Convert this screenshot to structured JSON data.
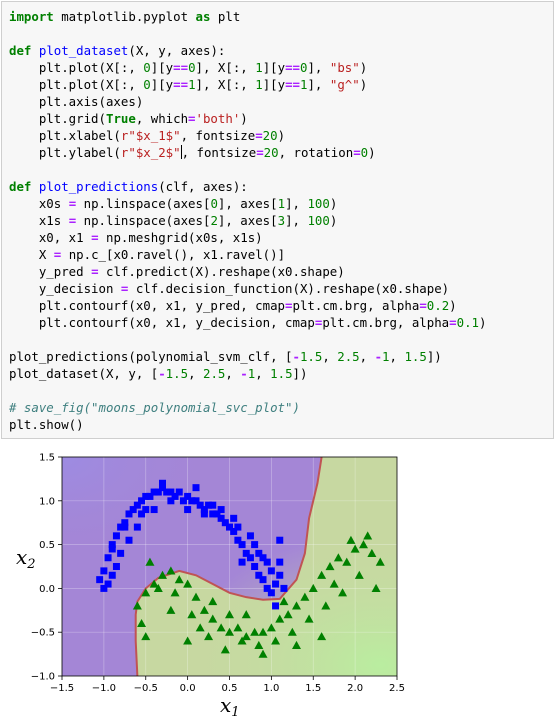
{
  "code": {
    "lines": [
      [
        [
          "kw",
          "import"
        ],
        [
          "t",
          " matplotlib.pyplot "
        ],
        [
          "kw",
          "as"
        ],
        [
          "t",
          " plt"
        ]
      ],
      [],
      [
        [
          "kw",
          "def"
        ],
        [
          "t",
          " "
        ],
        [
          "fn",
          "plot_dataset"
        ],
        [
          "t",
          "(X, y, axes):"
        ]
      ],
      [
        [
          "t",
          "    plt.plot(X[:, "
        ],
        [
          "num",
          "0"
        ],
        [
          "t",
          "][y"
        ],
        [
          "op",
          "=="
        ],
        [
          "num",
          "0"
        ],
        [
          "t",
          "], X[:, "
        ],
        [
          "num",
          "1"
        ],
        [
          "t",
          "][y"
        ],
        [
          "op",
          "=="
        ],
        [
          "num",
          "0"
        ],
        [
          "t",
          "], "
        ],
        [
          "str",
          "\"bs\""
        ],
        [
          "t",
          ")"
        ]
      ],
      [
        [
          "t",
          "    plt.plot(X[:, "
        ],
        [
          "num",
          "0"
        ],
        [
          "t",
          "][y"
        ],
        [
          "op",
          "=="
        ],
        [
          "num",
          "1"
        ],
        [
          "t",
          "], X[:, "
        ],
        [
          "num",
          "1"
        ],
        [
          "t",
          "][y"
        ],
        [
          "op",
          "=="
        ],
        [
          "num",
          "1"
        ],
        [
          "t",
          "], "
        ],
        [
          "str",
          "\"g^\""
        ],
        [
          "t",
          ")"
        ]
      ],
      [
        [
          "t",
          "    plt.axis(axes)"
        ]
      ],
      [
        [
          "t",
          "    plt.grid("
        ],
        [
          "kw",
          "True"
        ],
        [
          "t",
          ", which"
        ],
        [
          "op",
          "="
        ],
        [
          "str",
          "'both'"
        ],
        [
          "t",
          ")"
        ]
      ],
      [
        [
          "t",
          "    plt.xlabel("
        ],
        [
          "str",
          "r\"$x_1$\""
        ],
        [
          "t",
          ", fontsize"
        ],
        [
          "op",
          "="
        ],
        [
          "num",
          "20"
        ],
        [
          "t",
          ")"
        ]
      ],
      [
        [
          "t",
          "    plt.ylabel("
        ],
        [
          "str",
          "r\"$x_2$\""
        ],
        [
          "cur",
          ""
        ],
        [
          "t",
          ", fontsize"
        ],
        [
          "op",
          "="
        ],
        [
          "num",
          "20"
        ],
        [
          "t",
          ", rotation"
        ],
        [
          "op",
          "="
        ],
        [
          "num",
          "0"
        ],
        [
          "t",
          ")"
        ]
      ],
      [],
      [
        [
          "kw",
          "def"
        ],
        [
          "t",
          " "
        ],
        [
          "fn",
          "plot_predictions"
        ],
        [
          "t",
          "(clf, axes):"
        ]
      ],
      [
        [
          "t",
          "    x0s "
        ],
        [
          "op",
          "="
        ],
        [
          "t",
          " np.linspace(axes["
        ],
        [
          "num",
          "0"
        ],
        [
          "t",
          "], axes["
        ],
        [
          "num",
          "1"
        ],
        [
          "t",
          "], "
        ],
        [
          "num",
          "100"
        ],
        [
          "t",
          ")"
        ]
      ],
      [
        [
          "t",
          "    x1s "
        ],
        [
          "op",
          "="
        ],
        [
          "t",
          " np.linspace(axes["
        ],
        [
          "num",
          "2"
        ],
        [
          "t",
          "], axes["
        ],
        [
          "num",
          "3"
        ],
        [
          "t",
          "], "
        ],
        [
          "num",
          "100"
        ],
        [
          "t",
          ")"
        ]
      ],
      [
        [
          "t",
          "    x0, x1 "
        ],
        [
          "op",
          "="
        ],
        [
          "t",
          " np.meshgrid(x0s, x1s)"
        ]
      ],
      [
        [
          "t",
          "    X "
        ],
        [
          "op",
          "="
        ],
        [
          "t",
          " np.c_[x0.ravel(), x1.ravel()]"
        ]
      ],
      [
        [
          "t",
          "    y_pred "
        ],
        [
          "op",
          "="
        ],
        [
          "t",
          " clf.predict(X).reshape(x0.shape)"
        ]
      ],
      [
        [
          "t",
          "    y_decision "
        ],
        [
          "op",
          "="
        ],
        [
          "t",
          " clf.decision_function(X).reshape(x0.shape)"
        ]
      ],
      [
        [
          "t",
          "    plt.contourf(x0, x1, y_pred, cmap"
        ],
        [
          "op",
          "="
        ],
        [
          "t",
          "plt.cm.brg, alpha"
        ],
        [
          "op",
          "="
        ],
        [
          "num",
          "0.2"
        ],
        [
          "t",
          ")"
        ]
      ],
      [
        [
          "t",
          "    plt.contourf(x0, x1, y_decision, cmap"
        ],
        [
          "op",
          "="
        ],
        [
          "t",
          "plt.cm.brg, alpha"
        ],
        [
          "op",
          "="
        ],
        [
          "num",
          "0.1"
        ],
        [
          "t",
          ")"
        ]
      ],
      [],
      [
        [
          "t",
          "plot_predictions(polynomial_svm_clf, ["
        ],
        [
          "op",
          "-"
        ],
        [
          "num",
          "1.5"
        ],
        [
          "t",
          ", "
        ],
        [
          "num",
          "2.5"
        ],
        [
          "t",
          ", "
        ],
        [
          "op",
          "-"
        ],
        [
          "num",
          "1"
        ],
        [
          "t",
          ", "
        ],
        [
          "num",
          "1.5"
        ],
        [
          "t",
          "])"
        ]
      ],
      [
        [
          "t",
          "plot_dataset(X, y, ["
        ],
        [
          "op",
          "-"
        ],
        [
          "num",
          "1.5"
        ],
        [
          "t",
          ", "
        ],
        [
          "num",
          "2.5"
        ],
        [
          "t",
          ", "
        ],
        [
          "op",
          "-"
        ],
        [
          "num",
          "1"
        ],
        [
          "t",
          ", "
        ],
        [
          "num",
          "1.5"
        ],
        [
          "t",
          "])"
        ]
      ],
      [],
      [
        [
          "cm",
          "# save_fig(\"moons_polynomial_svc_plot\")"
        ]
      ],
      [
        [
          "t",
          "plt.show()"
        ]
      ]
    ]
  },
  "plot": {
    "x_ticks": [
      "−1.5",
      "−1.0",
      "−0.5",
      "0.0",
      "0.5",
      "1.0",
      "1.5",
      "2.0",
      "2.5"
    ],
    "y_ticks": [
      "1.5",
      "1.0",
      "0.5",
      "0.0",
      "−0.5",
      "−1.0"
    ],
    "xlabel": "x",
    "xlabel_sub": "1",
    "ylabel": "x",
    "ylabel_sub": "2"
  },
  "chart_data": {
    "type": "scatter",
    "xlim": [
      -1.5,
      2.5
    ],
    "ylim": [
      -1.0,
      1.5
    ],
    "grid": true,
    "x_ticks": [
      -1.5,
      -1.0,
      -0.5,
      0.0,
      0.5,
      1.0,
      1.5,
      2.0,
      2.5
    ],
    "y_ticks": [
      -1.0,
      -0.5,
      0.0,
      0.5,
      1.0,
      1.5
    ],
    "colors": {
      "class0": "#0000ff",
      "class1": "#008000",
      "region0": "#a486d6",
      "region1": "#c7d8a1",
      "boundary": "#c05454"
    },
    "series": [
      {
        "marker": "bs",
        "color": "#0000ff",
        "x": [
          -1.0,
          -0.95,
          -0.9,
          -0.85,
          -0.8,
          -0.75,
          -0.7,
          -0.65,
          -0.6,
          -0.55,
          -0.5,
          -0.45,
          -0.4,
          -0.35,
          -0.3,
          -0.25,
          -0.2,
          -0.15,
          -0.1,
          -0.05,
          0.0,
          0.05,
          0.1,
          0.15,
          0.2,
          0.25,
          0.3,
          0.35,
          0.4,
          0.45,
          0.5,
          0.55,
          0.6,
          0.65,
          0.7,
          0.75,
          0.8,
          0.85,
          0.9,
          0.95,
          1.0,
          1.05,
          1.1,
          1.15,
          -0.95,
          -0.9,
          -0.8,
          -0.7,
          -0.6,
          -0.5,
          -0.4,
          -0.2,
          0.0,
          0.2,
          0.4,
          0.6,
          0.8,
          0.9,
          1.0,
          1.1,
          -1.05,
          -0.9,
          -0.75,
          -0.55,
          -0.3,
          0.1,
          0.3,
          0.55,
          0.75,
          0.95,
          1.05,
          -1.0,
          -0.85,
          0.65,
          0.85,
          1.1
        ],
        "y": [
          0.2,
          0.35,
          0.45,
          0.6,
          0.7,
          0.75,
          0.85,
          0.9,
          0.95,
          1.0,
          1.05,
          1.05,
          1.1,
          1.1,
          1.15,
          1.1,
          1.1,
          1.05,
          1.1,
          1.0,
          1.05,
          1.0,
          1.0,
          0.95,
          0.9,
          0.95,
          0.85,
          0.85,
          0.8,
          0.75,
          0.7,
          0.65,
          0.55,
          0.5,
          0.4,
          0.35,
          0.25,
          0.15,
          0.1,
          0.0,
          -0.05,
          0.05,
          0.15,
          0.0,
          0.05,
          0.15,
          0.4,
          0.55,
          0.7,
          0.9,
          0.9,
          1.0,
          0.9,
          0.85,
          0.9,
          0.7,
          0.5,
          0.35,
          0.2,
          0.3,
          0.1,
          0.5,
          0.7,
          0.85,
          1.2,
          1.15,
          0.95,
          0.8,
          0.6,
          0.3,
          -0.2,
          0.0,
          0.25,
          0.3,
          0.4,
          0.55
        ]
      },
      {
        "marker": "g^",
        "color": "#008000",
        "x": [
          -0.6,
          -0.5,
          -0.4,
          -0.3,
          -0.2,
          -0.1,
          0.0,
          0.1,
          0.2,
          0.3,
          0.4,
          0.5,
          0.6,
          0.7,
          0.8,
          0.9,
          1.0,
          1.1,
          1.2,
          1.3,
          1.4,
          1.5,
          1.6,
          1.7,
          1.8,
          1.9,
          2.0,
          2.1,
          2.2,
          2.3,
          -0.55,
          -0.35,
          -0.15,
          0.05,
          0.25,
          0.45,
          0.65,
          0.85,
          1.05,
          1.25,
          1.45,
          1.65,
          1.85,
          2.05,
          -0.5,
          -0.2,
          0.15,
          0.5,
          0.9,
          1.3,
          1.75,
          2.15,
          0.3,
          0.7,
          1.15,
          1.6,
          1.95,
          2.25,
          -0.45,
          0.0
        ],
        "y": [
          -0.2,
          -0.05,
          0.05,
          0.15,
          0.2,
          0.1,
          0.05,
          -0.1,
          -0.25,
          -0.35,
          -0.45,
          -0.5,
          -0.45,
          -0.55,
          -0.5,
          -0.5,
          -0.45,
          -0.35,
          -0.3,
          -0.2,
          -0.1,
          0.0,
          0.15,
          0.25,
          0.35,
          0.3,
          0.45,
          0.5,
          0.4,
          0.3,
          -0.4,
          0.0,
          -0.05,
          -0.3,
          -0.55,
          -0.7,
          -0.6,
          -0.65,
          -0.6,
          -0.5,
          -0.35,
          -0.2,
          -0.05,
          0.15,
          -0.55,
          -0.25,
          -0.45,
          -0.3,
          -0.75,
          -0.65,
          0.05,
          0.6,
          -0.15,
          -0.3,
          -0.15,
          -0.55,
          0.55,
          0.0,
          0.3,
          -0.6
        ]
      }
    ]
  }
}
